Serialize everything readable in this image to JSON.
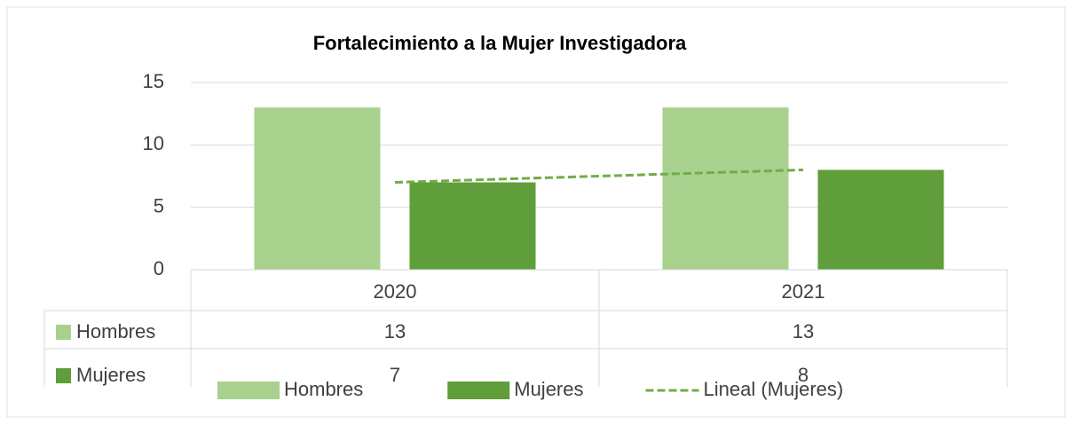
{
  "chart_data": {
    "type": "bar",
    "title": "Fortalecimiento a la Mujer Investigadora",
    "categories": [
      "2020",
      "2021"
    ],
    "series": [
      {
        "name": "Hombres",
        "color": "#a9d18e",
        "values": [
          13,
          13
        ]
      },
      {
        "name": "Mujeres",
        "color": "#5f9e3a",
        "values": [
          7,
          8
        ]
      }
    ],
    "trendline": {
      "name": "Lineal (Mujeres)",
      "series": 1,
      "color": "#70ad47"
    },
    "ylim": [
      0,
      15
    ],
    "yticks": [
      0,
      5,
      10,
      15
    ],
    "grid": true,
    "data_table": true,
    "legend": "bottom"
  }
}
